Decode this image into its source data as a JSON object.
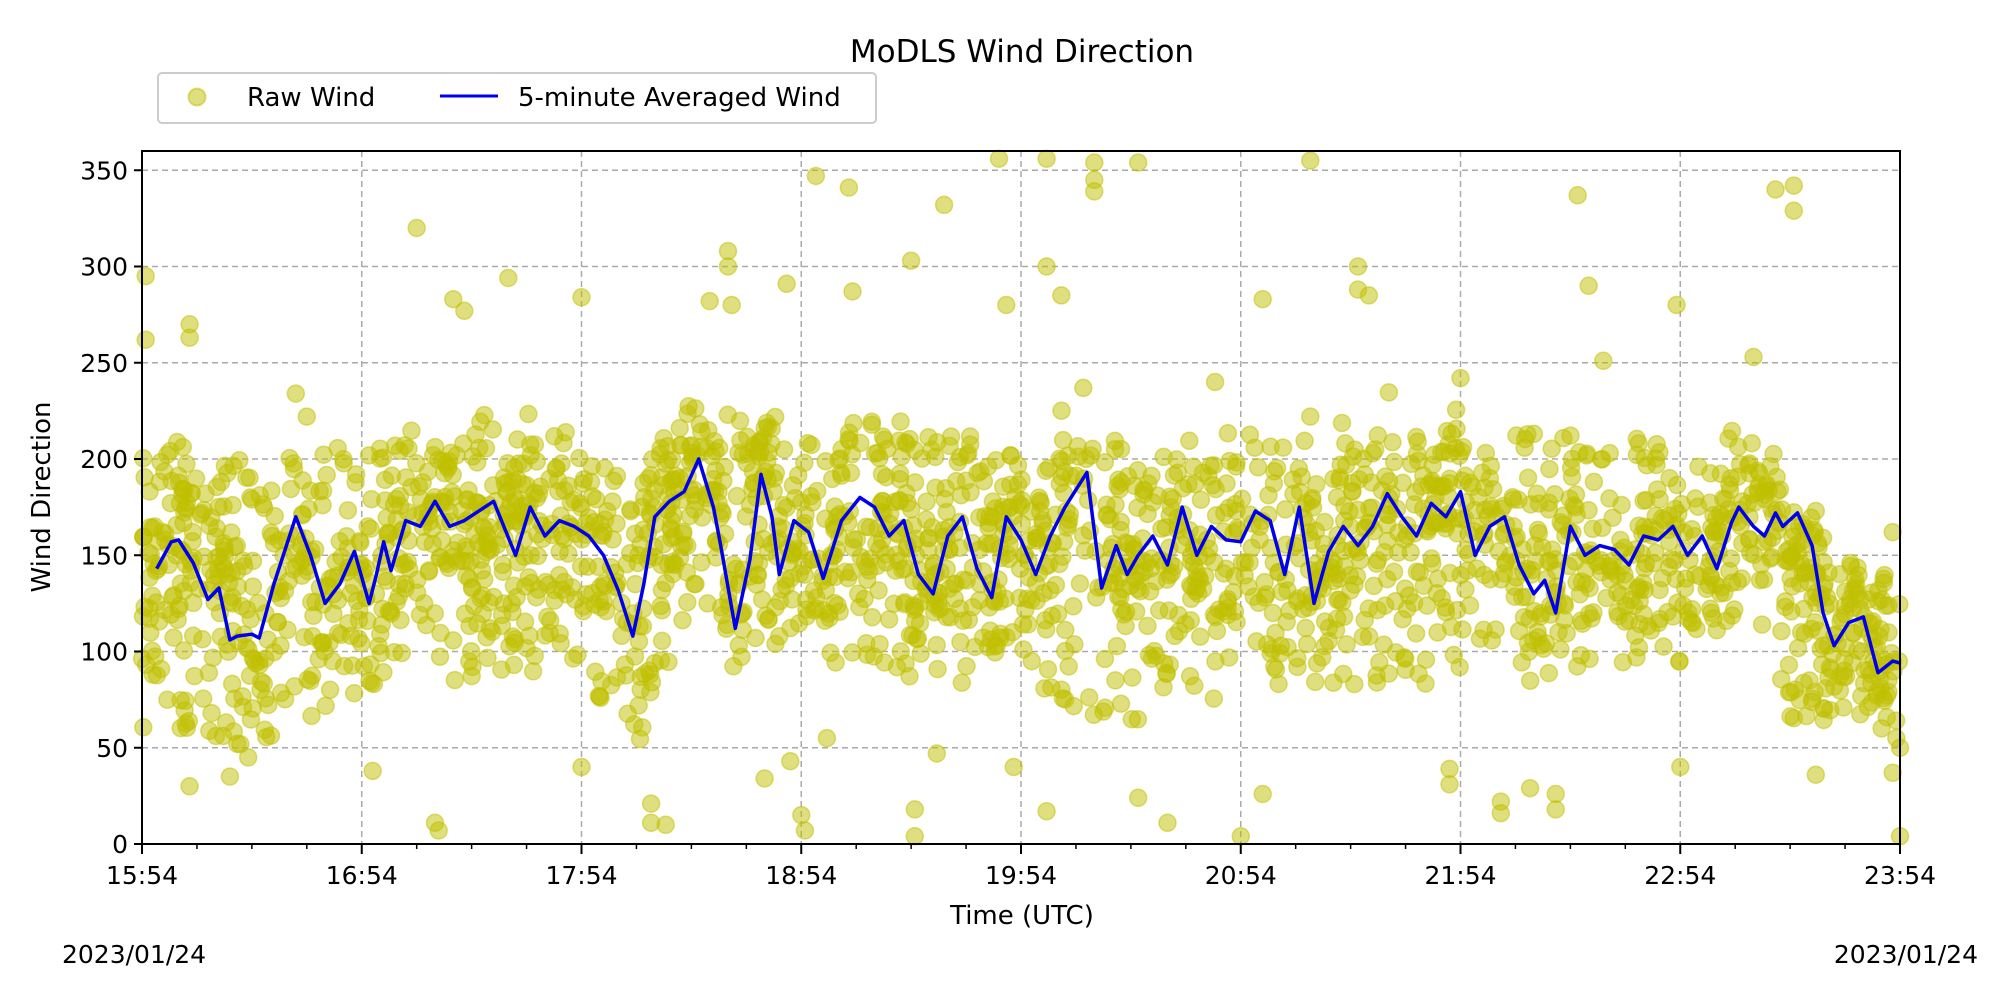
{
  "chart_data": {
    "type": "scatter",
    "title": "MoDLS Wind Direction",
    "xlabel": "Time (UTC)",
    "ylabel": "Wind Direction",
    "x_tick_labels": [
      "15:54",
      "16:54",
      "17:54",
      "18:54",
      "19:54",
      "20:54",
      "21:54",
      "22:54",
      "23:54"
    ],
    "y_ticks": [
      0,
      50,
      100,
      150,
      200,
      250,
      300,
      350
    ],
    "xlim": [
      "15:54",
      "23:54"
    ],
    "ylim": [
      0,
      360
    ],
    "grid": true,
    "legend_placement": "top-left, above plot",
    "date_left": "2023/01/24",
    "date_right": "2023/01/24",
    "series": [
      {
        "name": "Raw Wind",
        "style": "scatter",
        "color": "#bfbf00",
        "typical_band": [
          {
            "x": "15:54",
            "low": 60,
            "high": 210
          },
          {
            "x": "16:24",
            "low": 50,
            "high": 200
          },
          {
            "x": "16:54",
            "low": 80,
            "high": 210
          },
          {
            "x": "17:24",
            "low": 85,
            "high": 215
          },
          {
            "x": "17:54",
            "low": 90,
            "high": 215
          },
          {
            "x": "18:09",
            "low": 40,
            "high": 190
          },
          {
            "x": "18:24",
            "low": 130,
            "high": 230
          },
          {
            "x": "18:54",
            "low": 90,
            "high": 220
          },
          {
            "x": "19:54",
            "low": 80,
            "high": 215
          },
          {
            "x": "20:24",
            "low": 60,
            "high": 210
          },
          {
            "x": "20:54",
            "low": 80,
            "high": 210
          },
          {
            "x": "21:54",
            "low": 80,
            "high": 215
          },
          {
            "x": "22:54",
            "low": 90,
            "high": 210
          },
          {
            "x": "23:14",
            "low": 130,
            "high": 220
          },
          {
            "x": "23:24",
            "low": 60,
            "high": 150
          },
          {
            "x": "23:54",
            "low": 60,
            "high": 140
          }
        ],
        "outliers": [
          {
            "x": "15:55",
            "y": 295
          },
          {
            "x": "15:55",
            "y": 262
          },
          {
            "x": "16:07",
            "y": 270
          },
          {
            "x": "16:07",
            "y": 263
          },
          {
            "x": "16:07",
            "y": 30
          },
          {
            "x": "16:18",
            "y": 35
          },
          {
            "x": "16:23",
            "y": 45
          },
          {
            "x": "16:36",
            "y": 234
          },
          {
            "x": "16:39",
            "y": 222
          },
          {
            "x": "16:57",
            "y": 38
          },
          {
            "x": "17:09",
            "y": 320
          },
          {
            "x": "17:14",
            "y": 11
          },
          {
            "x": "17:15",
            "y": 7
          },
          {
            "x": "17:19",
            "y": 283
          },
          {
            "x": "17:22",
            "y": 277
          },
          {
            "x": "17:34",
            "y": 294
          },
          {
            "x": "17:54",
            "y": 284
          },
          {
            "x": "17:54",
            "y": 40
          },
          {
            "x": "18:13",
            "y": 21
          },
          {
            "x": "18:13",
            "y": 11
          },
          {
            "x": "18:17",
            "y": 10
          },
          {
            "x": "18:29",
            "y": 282
          },
          {
            "x": "18:34",
            "y": 308
          },
          {
            "x": "18:34",
            "y": 300
          },
          {
            "x": "18:35",
            "y": 280
          },
          {
            "x": "18:44",
            "y": 34
          },
          {
            "x": "18:50",
            "y": 291
          },
          {
            "x": "18:51",
            "y": 43
          },
          {
            "x": "18:54",
            "y": 15
          },
          {
            "x": "18:55",
            "y": 7
          },
          {
            "x": "18:58",
            "y": 347
          },
          {
            "x": "19:01",
            "y": 55
          },
          {
            "x": "19:07",
            "y": 341
          },
          {
            "x": "19:08",
            "y": 287
          },
          {
            "x": "19:24",
            "y": 303
          },
          {
            "x": "19:25",
            "y": 18
          },
          {
            "x": "19:25",
            "y": 4
          },
          {
            "x": "19:31",
            "y": 47
          },
          {
            "x": "19:33",
            "y": 332
          },
          {
            "x": "19:48",
            "y": 356
          },
          {
            "x": "19:50",
            "y": 280
          },
          {
            "x": "19:52",
            "y": 40
          },
          {
            "x": "20:01",
            "y": 356
          },
          {
            "x": "20:01",
            "y": 17
          },
          {
            "x": "20:01",
            "y": 300
          },
          {
            "x": "20:05",
            "y": 285
          },
          {
            "x": "20:14",
            "y": 354
          },
          {
            "x": "20:14",
            "y": 345
          },
          {
            "x": "20:14",
            "y": 339
          },
          {
            "x": "20:26",
            "y": 354
          },
          {
            "x": "20:26",
            "y": 24
          },
          {
            "x": "20:34",
            "y": 11
          },
          {
            "x": "20:47",
            "y": 240
          },
          {
            "x": "20:54",
            "y": 4
          },
          {
            "x": "21:00",
            "y": 26
          },
          {
            "x": "21:00",
            "y": 283
          },
          {
            "x": "21:13",
            "y": 355
          },
          {
            "x": "21:13",
            "y": 222
          },
          {
            "x": "21:26",
            "y": 300
          },
          {
            "x": "21:26",
            "y": 288
          },
          {
            "x": "21:29",
            "y": 285
          },
          {
            "x": "21:51",
            "y": 39
          },
          {
            "x": "21:51",
            "y": 31
          },
          {
            "x": "21:54",
            "y": 242
          },
          {
            "x": "22:05",
            "y": 22
          },
          {
            "x": "22:05",
            "y": 16
          },
          {
            "x": "22:13",
            "y": 29
          },
          {
            "x": "22:20",
            "y": 26
          },
          {
            "x": "22:20",
            "y": 18
          },
          {
            "x": "22:26",
            "y": 337
          },
          {
            "x": "22:29",
            "y": 290
          },
          {
            "x": "22:33",
            "y": 251
          },
          {
            "x": "22:53",
            "y": 280
          },
          {
            "x": "22:54",
            "y": 40
          },
          {
            "x": "23:14",
            "y": 253
          },
          {
            "x": "23:20",
            "y": 340
          },
          {
            "x": "23:25",
            "y": 342
          },
          {
            "x": "23:25",
            "y": 329
          },
          {
            "x": "23:31",
            "y": 173
          },
          {
            "x": "23:31",
            "y": 36
          },
          {
            "x": "23:33",
            "y": 159
          },
          {
            "x": "23:52",
            "y": 162
          },
          {
            "x": "23:52",
            "y": 37
          },
          {
            "x": "23:53",
            "y": 55
          },
          {
            "x": "23:54",
            "y": 4
          },
          {
            "x": "23:54",
            "y": 50
          }
        ]
      },
      {
        "name": "5-minute Averaged Wind",
        "style": "line",
        "color": "#0000ee",
        "x": [
          "15:58",
          "16:00",
          "16:02",
          "16:04",
          "16:08",
          "16:12",
          "16:15",
          "16:18",
          "16:20",
          "16:24",
          "16:26",
          "16:30",
          "16:36",
          "16:40",
          "16:44",
          "16:48",
          "16:52",
          "16:56",
          "16:58",
          "17:00",
          "17:02",
          "17:06",
          "17:10",
          "17:14",
          "17:18",
          "17:22",
          "17:30",
          "17:36",
          "17:40",
          "17:44",
          "17:48",
          "17:52",
          "17:56",
          "18:00",
          "18:04",
          "18:08",
          "18:11",
          "18:14",
          "18:18",
          "18:22",
          "18:26",
          "18:30",
          "18:32",
          "18:36",
          "18:40",
          "18:43",
          "18:46",
          "18:48",
          "18:52",
          "18:56",
          "19:00",
          "19:05",
          "19:10",
          "19:14",
          "19:18",
          "19:22",
          "19:26",
          "19:30",
          "19:34",
          "19:38",
          "19:42",
          "19:46",
          "19:50",
          "19:54",
          "19:58",
          "20:02",
          "20:06",
          "20:12",
          "20:16",
          "20:20",
          "20:23",
          "20:26",
          "20:30",
          "20:34",
          "20:38",
          "20:42",
          "20:46",
          "20:50",
          "20:54",
          "20:58",
          "21:02",
          "21:06",
          "21:10",
          "21:14",
          "21:18",
          "21:22",
          "21:26",
          "21:30",
          "21:34",
          "21:38",
          "21:42",
          "21:46",
          "21:50",
          "21:54",
          "21:58",
          "22:02",
          "22:06",
          "22:10",
          "22:14",
          "22:17",
          "22:20",
          "22:24",
          "22:28",
          "22:32",
          "22:36",
          "22:40",
          "22:44",
          "22:48",
          "22:52",
          "22:56",
          "23:00",
          "23:04",
          "23:08",
          "23:10",
          "23:14",
          "23:17",
          "23:20",
          "23:22",
          "23:26",
          "23:30",
          "23:33",
          "23:36",
          "23:40",
          "23:44",
          "23:48",
          "23:52",
          "23:54"
        ],
        "values": [
          143,
          150,
          157,
          158,
          146,
          127,
          133,
          106,
          108,
          109,
          107,
          135,
          170,
          150,
          125,
          135,
          152,
          125,
          140,
          157,
          142,
          168,
          165,
          178,
          165,
          168,
          178,
          150,
          175,
          160,
          168,
          165,
          160,
          150,
          132,
          108,
          135,
          170,
          178,
          183,
          200,
          175,
          155,
          112,
          148,
          192,
          170,
          140,
          168,
          162,
          138,
          168,
          180,
          175,
          160,
          168,
          140,
          130,
          160,
          170,
          143,
          128,
          170,
          158,
          140,
          160,
          175,
          193,
          133,
          155,
          140,
          150,
          160,
          145,
          175,
          150,
          165,
          158,
          157,
          173,
          168,
          140,
          175,
          125,
          152,
          165,
          155,
          165,
          182,
          170,
          160,
          177,
          170,
          183,
          150,
          165,
          170,
          145,
          130,
          137,
          120,
          165,
          150,
          155,
          153,
          145,
          160,
          158,
          165,
          150,
          160,
          143,
          167,
          175,
          165,
          160,
          172,
          165,
          172,
          155,
          120,
          103,
          115,
          118,
          89,
          95,
          94
        ]
      }
    ]
  }
}
